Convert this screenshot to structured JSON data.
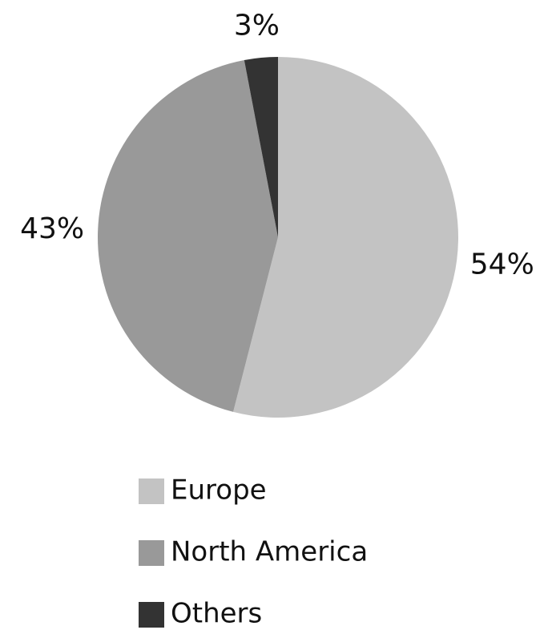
{
  "chart_data": {
    "type": "pie",
    "categories": [
      "Europe",
      "North America",
      "Others"
    ],
    "values": [
      54,
      43,
      3
    ],
    "value_labels": [
      "54%",
      "43%",
      "3%"
    ],
    "colors": [
      "#c3c3c3",
      "#999999",
      "#333333"
    ],
    "legend": "bottom"
  }
}
